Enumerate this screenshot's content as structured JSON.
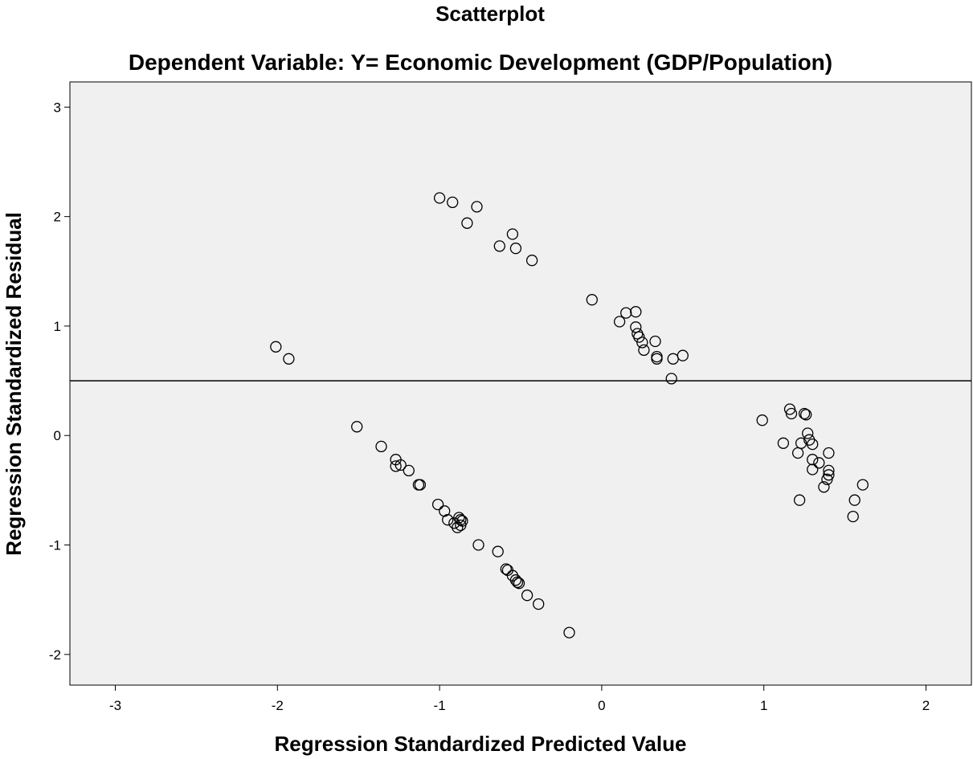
{
  "chart_data": {
    "type": "scatter",
    "title": "Scatterplot",
    "subtitle": "Dependent Variable: Y= Economic Development (GDP/Population)",
    "xlabel": "Regression Standardized Predicted Value",
    "ylabel": "Regression Standardized Residual",
    "xlim": [
      -3.28,
      2.28
    ],
    "ylim": [
      -2.28,
      3.23
    ],
    "x_ticks": [
      -3,
      -2,
      -1,
      0,
      1,
      2
    ],
    "y_ticks": [
      -2,
      -1,
      0,
      1,
      2,
      3
    ],
    "x_tick_labels": [
      "-3",
      "-2",
      "-1",
      "0",
      "1",
      "2"
    ],
    "y_tick_labels": [
      "-2",
      "-1",
      "0",
      "1",
      "2",
      "3"
    ],
    "reference_line_y": 0.5,
    "grid": false,
    "legend": "none",
    "colors": {
      "plot_background": "#f0f0f0",
      "marker": "#000000",
      "line": "#000000"
    },
    "points": [
      [
        -1.0,
        2.17
      ],
      [
        -0.92,
        2.13
      ],
      [
        -0.77,
        2.09
      ],
      [
        -0.83,
        1.94
      ],
      [
        -0.55,
        1.84
      ],
      [
        -0.63,
        1.73
      ],
      [
        -0.53,
        1.71
      ],
      [
        -0.43,
        1.6
      ],
      [
        -0.06,
        1.24
      ],
      [
        0.15,
        1.12
      ],
      [
        0.21,
        1.13
      ],
      [
        0.11,
        1.04
      ],
      [
        0.21,
        0.99
      ],
      [
        0.22,
        0.93
      ],
      [
        0.23,
        0.9
      ],
      [
        0.25,
        0.85
      ],
      [
        0.33,
        0.86
      ],
      [
        0.26,
        0.78
      ],
      [
        0.34,
        0.72
      ],
      [
        0.34,
        0.7
      ],
      [
        0.5,
        0.73
      ],
      [
        0.44,
        0.7
      ],
      [
        0.43,
        0.52
      ],
      [
        -2.01,
        0.81
      ],
      [
        -1.93,
        0.7
      ],
      [
        -1.51,
        0.08
      ],
      [
        -1.36,
        -0.1
      ],
      [
        -1.27,
        -0.22
      ],
      [
        -1.27,
        -0.28
      ],
      [
        -1.24,
        -0.27
      ],
      [
        -1.19,
        -0.32
      ],
      [
        -1.13,
        -0.45
      ],
      [
        -1.12,
        -0.45
      ],
      [
        -1.01,
        -0.63
      ],
      [
        -0.97,
        -0.69
      ],
      [
        -0.95,
        -0.77
      ],
      [
        -0.91,
        -0.8
      ],
      [
        -0.88,
        -0.75
      ],
      [
        -0.87,
        -0.77
      ],
      [
        -0.86,
        -0.78
      ],
      [
        -0.89,
        -0.84
      ],
      [
        -0.87,
        -0.82
      ],
      [
        -0.76,
        -1.0
      ],
      [
        -0.64,
        -1.06
      ],
      [
        -0.59,
        -1.22
      ],
      [
        -0.58,
        -1.23
      ],
      [
        -0.55,
        -1.28
      ],
      [
        -0.53,
        -1.32
      ],
      [
        -0.52,
        -1.34
      ],
      [
        -0.51,
        -1.35
      ],
      [
        -0.46,
        -1.46
      ],
      [
        -0.39,
        -1.54
      ],
      [
        -0.2,
        -1.8
      ],
      [
        0.99,
        0.14
      ],
      [
        1.16,
        0.24
      ],
      [
        1.17,
        0.2
      ],
      [
        1.25,
        0.2
      ],
      [
        1.26,
        0.19
      ],
      [
        1.27,
        0.02
      ],
      [
        1.28,
        -0.04
      ],
      [
        1.23,
        -0.07
      ],
      [
        1.3,
        -0.08
      ],
      [
        1.12,
        -0.07
      ],
      [
        1.21,
        -0.16
      ],
      [
        1.4,
        -0.16
      ],
      [
        1.3,
        -0.22
      ],
      [
        1.34,
        -0.25
      ],
      [
        1.3,
        -0.31
      ],
      [
        1.4,
        -0.32
      ],
      [
        1.4,
        -0.36
      ],
      [
        1.39,
        -0.4
      ],
      [
        1.37,
        -0.47
      ],
      [
        1.61,
        -0.45
      ],
      [
        1.22,
        -0.59
      ],
      [
        1.56,
        -0.59
      ],
      [
        1.55,
        -0.74
      ]
    ]
  }
}
